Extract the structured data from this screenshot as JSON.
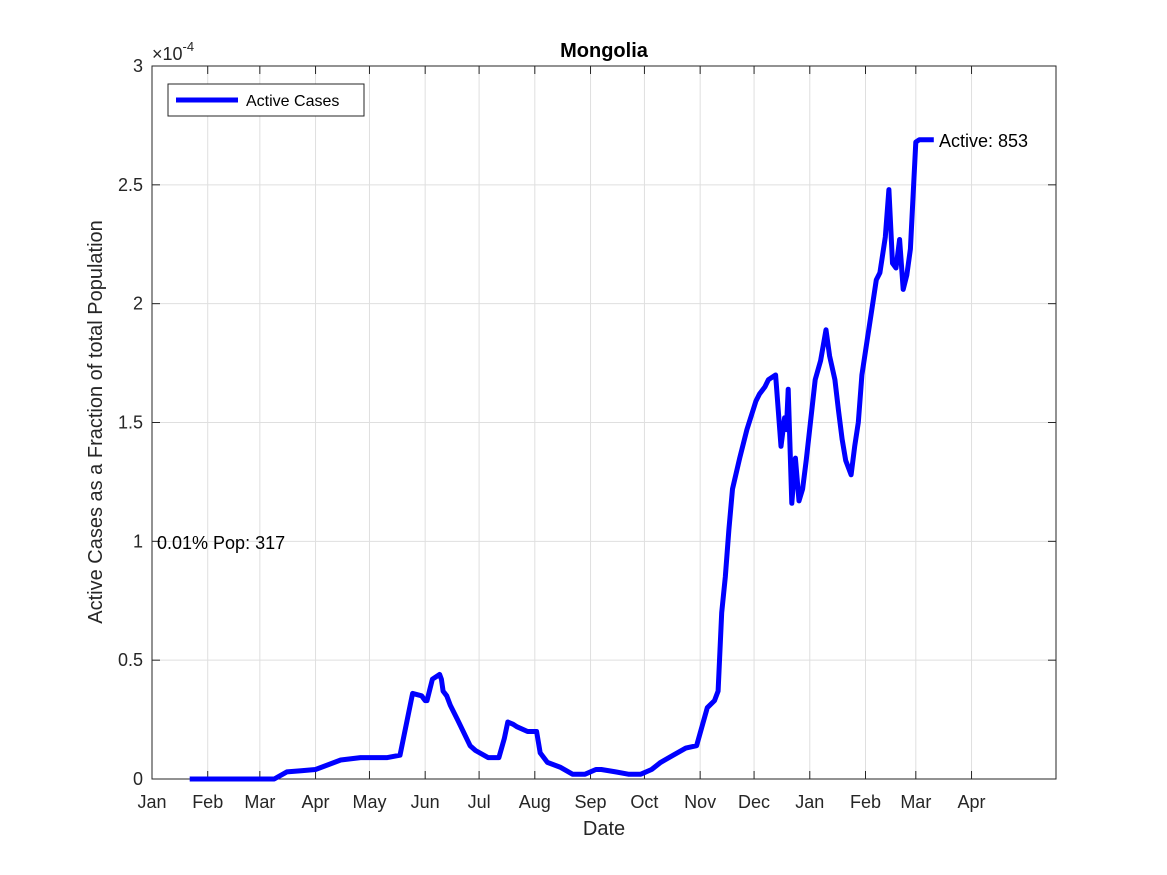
{
  "chart_data": {
    "type": "line",
    "title": "Mongolia",
    "xlabel": "Date",
    "ylabel": "Active Cases as a Fraction of total Population",
    "y_exponent_label": "×10",
    "y_exponent_power": "-4",
    "y_scale": 0.0001,
    "ylim": [
      0,
      3
    ],
    "yticks": [
      0,
      0.5,
      1,
      1.5,
      2,
      2.5,
      3
    ],
    "ytick_labels": [
      "0",
      "0.5",
      "1",
      "1.5",
      "2",
      "2.5",
      "3"
    ],
    "xlim": [
      "2020-01-01",
      "2021-05-18"
    ],
    "xtick_labels": [
      "Jan",
      "Feb",
      "Mar",
      "Apr",
      "May",
      "Jun",
      "Jul",
      "Aug",
      "Sep",
      "Oct",
      "Nov",
      "Dec",
      "Jan",
      "Feb",
      "Mar",
      "Apr"
    ],
    "xtick_dates": [
      "2020-01-01",
      "2020-02-01",
      "2020-03-01",
      "2020-04-01",
      "2020-05-01",
      "2020-06-01",
      "2020-07-01",
      "2020-08-01",
      "2020-09-01",
      "2020-10-01",
      "2020-11-01",
      "2020-12-01",
      "2021-01-01",
      "2021-02-01",
      "2021-03-01",
      "2021-04-01"
    ],
    "grid": true,
    "legend_position": "top-left",
    "series": [
      {
        "name": "Active Cases",
        "color": "#0000ff",
        "x": [
          "2020-01-22",
          "2020-03-09",
          "2020-03-16",
          "2020-03-24",
          "2020-04-01",
          "2020-04-15",
          "2020-04-26",
          "2020-04-28",
          "2020-05-05",
          "2020-05-11",
          "2020-05-18",
          "2020-05-25",
          "2020-05-30",
          "2020-05-31",
          "2020-06-01",
          "2020-06-02",
          "2020-06-05",
          "2020-06-09",
          "2020-06-10",
          "2020-06-11",
          "2020-06-13",
          "2020-06-15",
          "2020-06-19",
          "2020-06-26",
          "2020-06-29",
          "2020-07-06",
          "2020-07-12",
          "2020-07-15",
          "2020-07-17",
          "2020-07-20",
          "2020-07-22",
          "2020-07-28",
          "2020-08-02",
          "2020-08-04",
          "2020-08-08",
          "2020-08-15",
          "2020-08-22",
          "2020-08-29",
          "2020-09-04",
          "2020-09-07",
          "2020-09-15",
          "2020-09-22",
          "2020-09-29",
          "2020-10-05",
          "2020-10-10",
          "2020-10-17",
          "2020-10-24",
          "2020-10-30",
          "2020-11-05",
          "2020-11-09",
          "2020-11-11",
          "2020-11-13",
          "2020-11-15",
          "2020-11-17",
          "2020-11-19",
          "2020-11-23",
          "2020-11-27",
          "2020-12-02",
          "2020-12-04",
          "2020-12-07",
          "2020-12-09",
          "2020-12-13",
          "2020-12-16",
          "2020-12-18",
          "2020-12-19",
          "2020-12-20",
          "2020-12-22",
          "2020-12-24",
          "2020-12-26",
          "2020-12-28",
          "2020-12-30",
          "2021-01-04",
          "2021-01-07",
          "2021-01-10",
          "2021-01-12",
          "2021-01-15",
          "2021-01-17",
          "2021-01-19",
          "2021-01-21",
          "2021-01-24",
          "2021-01-26",
          "2021-01-28",
          "2021-01-30",
          "2021-02-02",
          "2021-02-05",
          "2021-02-07",
          "2021-02-09",
          "2021-02-12",
          "2021-02-14",
          "2021-02-16",
          "2021-02-18",
          "2021-02-20",
          "2021-02-22",
          "2021-02-24",
          "2021-02-26",
          "2021-03-01",
          "2021-03-03",
          "2021-03-05",
          "2021-03-07",
          "2021-03-09",
          "2021-03-11"
        ],
        "y": [
          0,
          0,
          0.03,
          0.035,
          0.04,
          0.08,
          0.09,
          0.09,
          0.09,
          0.09,
          0.1,
          0.36,
          0.35,
          0.34,
          0.33,
          0.33,
          0.42,
          0.44,
          0.42,
          0.37,
          0.35,
          0.31,
          0.25,
          0.14,
          0.12,
          0.09,
          0.09,
          0.17,
          0.24,
          0.23,
          0.22,
          0.2,
          0.2,
          0.11,
          0.07,
          0.05,
          0.02,
          0.02,
          0.04,
          0.04,
          0.03,
          0.02,
          0.02,
          0.04,
          0.07,
          0.1,
          0.13,
          0.14,
          0.3,
          0.33,
          0.37,
          0.7,
          0.85,
          1.05,
          1.22,
          1.35,
          1.47,
          1.59,
          1.62,
          1.65,
          1.68,
          1.7,
          1.4,
          1.52,
          1.47,
          1.64,
          1.16,
          1.35,
          1.17,
          1.22,
          1.34,
          1.68,
          1.76,
          1.89,
          1.78,
          1.68,
          1.55,
          1.43,
          1.34,
          1.28,
          1.4,
          1.5,
          1.7,
          1.85,
          2.0,
          2.1,
          2.13,
          2.28,
          2.48,
          2.17,
          2.15,
          2.27,
          2.06,
          2.12,
          2.23,
          2.68,
          2.69,
          2.69,
          2.69,
          2.69,
          2.69
        ]
      }
    ],
    "annotations": [
      {
        "text": "0.01% Pop: 317"
      },
      {
        "text": "Active: 853"
      }
    ]
  }
}
